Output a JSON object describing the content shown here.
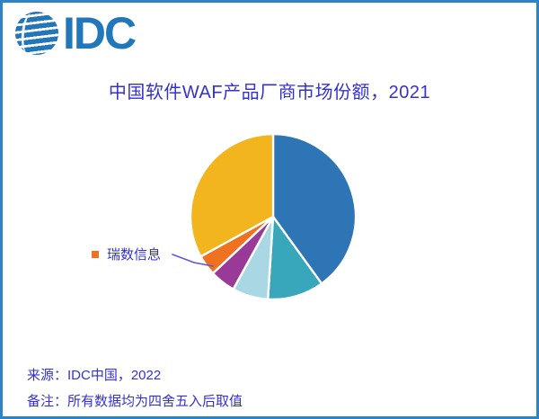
{
  "window": {
    "background": "#ffffff",
    "border_color": "#2e82c6"
  },
  "logo": {
    "text": "IDC",
    "color": "#2277bb"
  },
  "title": {
    "text": "中国软件WAF产品厂商市场份额，2021",
    "color": "#3333cc"
  },
  "chart_data": {
    "type": "pie",
    "title": "中国软件WAF产品厂商市场份额，2021",
    "direction": "clockwise",
    "start_angle_deg": 0,
    "legend_position": "callout-left",
    "slices": [
      {
        "label": "",
        "value": 40,
        "color": "#2e75b6"
      },
      {
        "label": "",
        "value": 11,
        "color": "#38a7bc"
      },
      {
        "label": "",
        "value": 7,
        "color": "#a9d8e4"
      },
      {
        "label": "",
        "value": 5,
        "color": "#993a99"
      },
      {
        "label": "瑞数信息",
        "value": 4,
        "color": "#ee7220"
      },
      {
        "label": "",
        "value": 33,
        "color": "#f2b51d"
      }
    ],
    "annotation": {
      "text": "瑞数信息",
      "marker_color": "#ee7220",
      "points_to": "orange-slice"
    }
  },
  "annotation": {
    "label": "瑞数信息"
  },
  "footer": {
    "source": "来源：IDC中国，2022",
    "note": "备注：所有数据均为四舍五入后取值"
  }
}
